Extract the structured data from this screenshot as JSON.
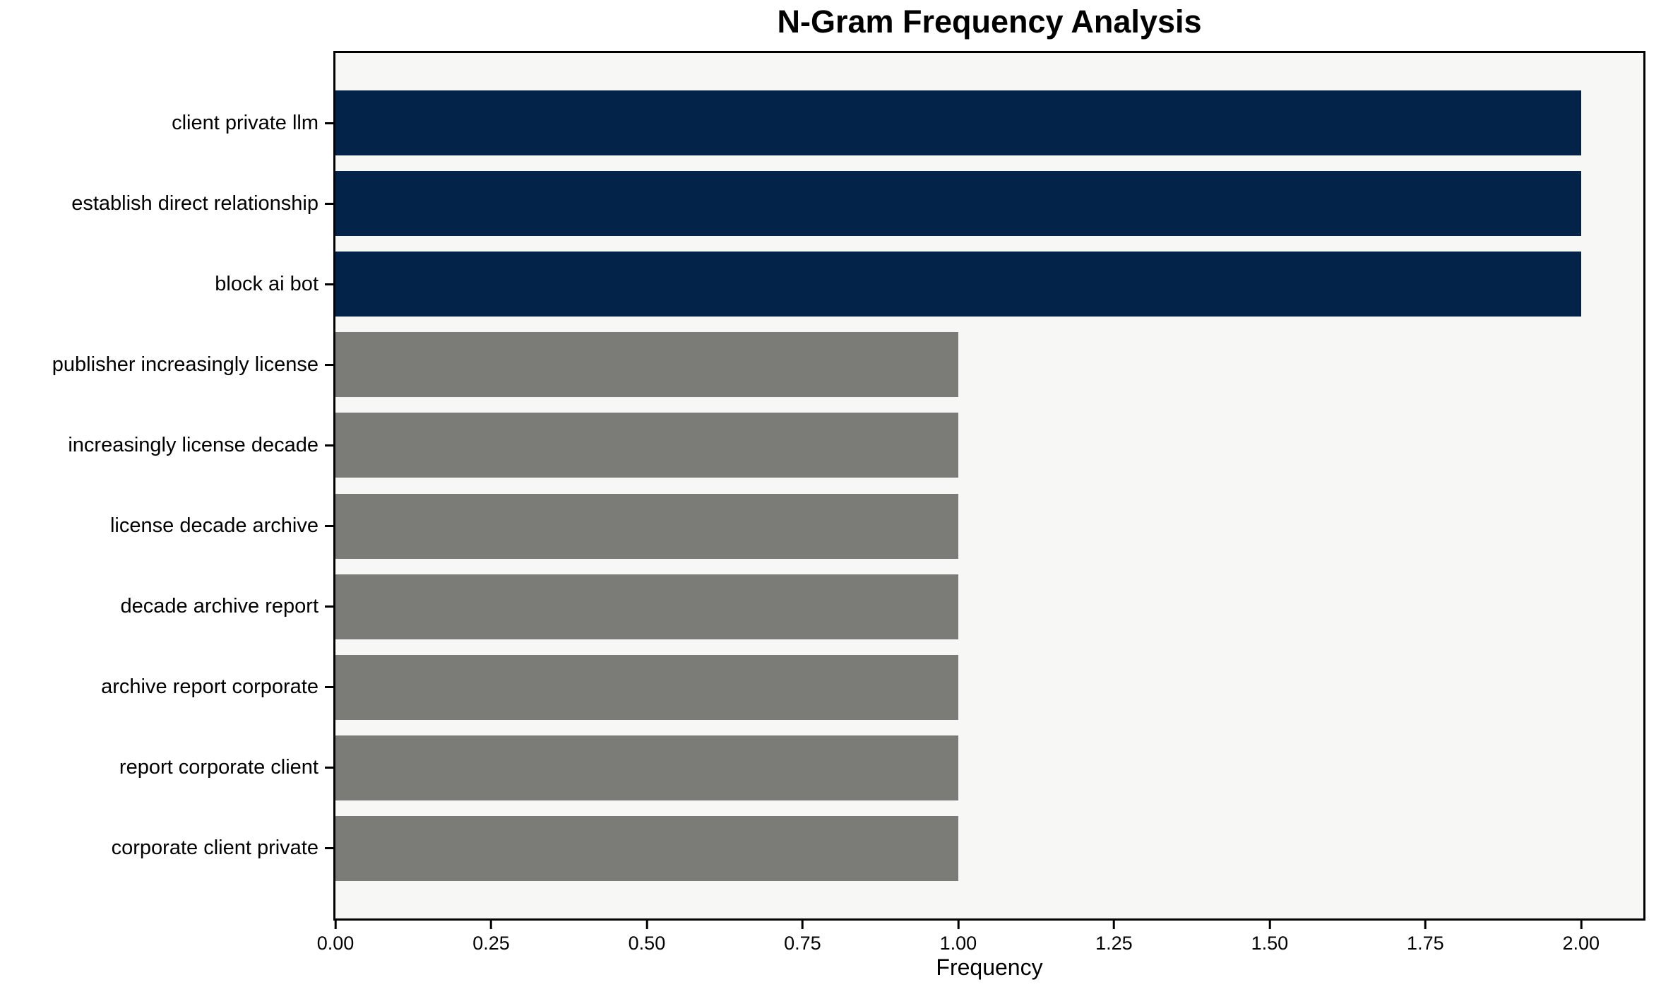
{
  "chart_data": {
    "type": "bar",
    "orientation": "horizontal",
    "title": "N-Gram Frequency Analysis",
    "xlabel": "Frequency",
    "ylabel": "",
    "categories": [
      "client private llm",
      "establish direct relationship",
      "block ai bot",
      "publisher increasingly license",
      "increasingly license decade",
      "license decade archive",
      "decade archive report",
      "archive report corporate",
      "report corporate client",
      "corporate client private"
    ],
    "values": [
      2,
      2,
      2,
      1,
      1,
      1,
      1,
      1,
      1,
      1
    ],
    "bar_colors": [
      "#032349",
      "#032349",
      "#032349",
      "#7B7B78",
      "#7B7B78",
      "#7B7B78",
      "#7B7B78",
      "#7B7B78",
      "#7B7B78",
      "#7B7B78"
    ],
    "xlim": [
      0,
      2.1
    ],
    "xticks": [
      {
        "value": 0.0,
        "label": "0.00"
      },
      {
        "value": 0.25,
        "label": "0.25"
      },
      {
        "value": 0.5,
        "label": "0.50"
      },
      {
        "value": 0.75,
        "label": "0.75"
      },
      {
        "value": 1.0,
        "label": "1.00"
      },
      {
        "value": 1.25,
        "label": "1.25"
      },
      {
        "value": 1.5,
        "label": "1.50"
      },
      {
        "value": 1.75,
        "label": "1.75"
      },
      {
        "value": 2.0,
        "label": "2.00"
      }
    ],
    "grid": false,
    "legend": false,
    "colors": {
      "bar_high": "#032349",
      "bar_low": "#7B7B78",
      "plot_bg": "#F7F7F5",
      "figure_bg": "#FFFFFF",
      "axis": "#000000"
    }
  }
}
